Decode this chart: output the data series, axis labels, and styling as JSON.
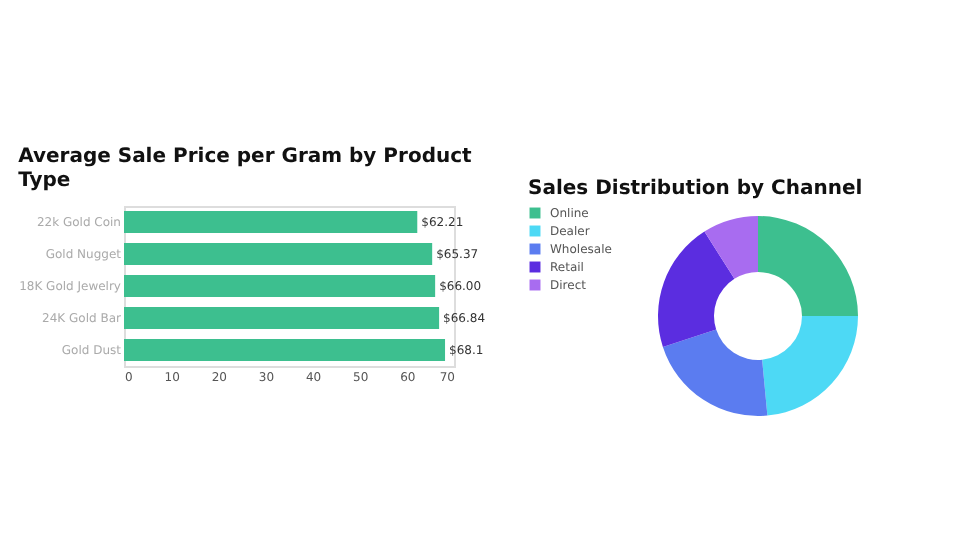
{
  "chart_data": [
    {
      "type": "bar",
      "orientation": "horizontal",
      "title": "Average Sale Price per Gram by Product Type",
      "categories": [
        "22k Gold Coin",
        "Gold Nugget",
        "18K Gold Jewelry",
        "24K Gold Bar",
        "Gold Dust"
      ],
      "values": [
        62.21,
        65.37,
        66.0,
        66.84,
        68.1
      ],
      "value_labels": [
        "$62.21",
        "$65.37",
        "$66.00",
        "$66.84",
        "$68.1"
      ],
      "color": "#3dbf8f",
      "xlim": [
        0,
        70
      ],
      "xticks": [
        0,
        10,
        20,
        30,
        40,
        50,
        60,
        70
      ],
      "grid": false
    },
    {
      "type": "donut",
      "title": "Sales Distribution by Channel",
      "categories": [
        "Online",
        "Dealer",
        "Wholesale",
        "Retail",
        "Direct"
      ],
      "values": [
        25,
        23.5,
        21.5,
        21,
        9
      ],
      "colors": [
        "#3dbf8f",
        "#4dd9f5",
        "#5b7cf0",
        "#5b2de0",
        "#a86cf0"
      ],
      "legend": "left"
    }
  ]
}
